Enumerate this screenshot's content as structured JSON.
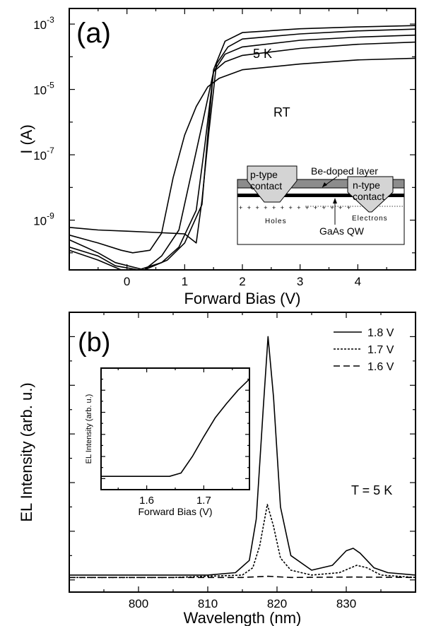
{
  "chart_data": [
    {
      "type": "line",
      "panel_label": "(a)",
      "xlabel": "Forward Bias (V)",
      "ylabel": "I (A)",
      "log_y": true,
      "xlim": [
        -1.0,
        5.0
      ],
      "ylim": [
        3e-11,
        0.003
      ],
      "x_ticks": [
        0,
        1,
        2,
        3,
        4
      ],
      "x_tick_labels": [
        "0",
        "1",
        "2",
        "3",
        "4"
      ],
      "y_ticks": [
        1e-09,
        1e-07,
        1e-05,
        0.001
      ],
      "y_tick_labels": [
        {
          "base": "10",
          "exp": "-9"
        },
        {
          "base": "10",
          "exp": "-7"
        },
        {
          "base": "10",
          "exp": "-5"
        },
        {
          "base": "10",
          "exp": "-3"
        }
      ],
      "annotations": [
        "5 K",
        "RT"
      ],
      "series": [
        {
          "values": [
            [
              -1.0,
              3.5e-10
            ],
            [
              -0.5,
              2e-10
            ],
            [
              -0.1,
              1.2e-10
            ],
            [
              0.1,
              1e-10
            ],
            [
              0.4,
              1.2e-10
            ],
            [
              0.6,
              4e-10
            ],
            [
              0.8,
              2e-08
            ],
            [
              1.0,
              4e-07
            ],
            [
              1.2,
              3e-06
            ],
            [
              1.4,
              1.2e-05
            ],
            [
              1.6,
              2.2e-05
            ],
            [
              2.0,
              4e-05
            ],
            [
              3.0,
              6e-05
            ],
            [
              4.0,
              8e-05
            ],
            [
              5.0,
              9e-05
            ]
          ]
        },
        {
          "values": [
            [
              -1.0,
              2.5e-10
            ],
            [
              -0.5,
              1e-10
            ],
            [
              -0.2,
              5e-11
            ],
            [
              0.3,
              3e-11
            ],
            [
              0.6,
              8e-11
            ],
            [
              0.9,
              5e-10
            ],
            [
              1.1,
              2e-08
            ],
            [
              1.3,
              8e-07
            ],
            [
              1.5,
              3.5e-05
            ],
            [
              1.7,
              7e-05
            ],
            [
              2.0,
              0.00011
            ],
            [
              3.0,
              0.00018
            ],
            [
              4.0,
              0.00024
            ],
            [
              5.0,
              0.00028
            ]
          ]
        },
        {
          "values": [
            [
              -1.0,
              1.5e-10
            ],
            [
              -0.5,
              8e-11
            ],
            [
              -0.2,
              4e-11
            ],
            [
              0.2,
              3e-11
            ],
            [
              0.6,
              5e-11
            ],
            [
              0.9,
              1.5e-10
            ],
            [
              1.2,
              2e-09
            ],
            [
              1.35,
              2e-07
            ],
            [
              1.5,
              3.5e-05
            ],
            [
              1.7,
              0.00012
            ],
            [
              2.0,
              0.0002
            ],
            [
              3.0,
              0.00032
            ],
            [
              4.0,
              0.0004
            ],
            [
              5.0,
              0.00046
            ]
          ]
        },
        {
          "values": [
            [
              -1.0,
              6e-10
            ],
            [
              -0.5,
              5e-10
            ],
            [
              0.0,
              4.6e-10
            ],
            [
              0.5,
              4.2e-10
            ],
            [
              1.0,
              3.8e-10
            ],
            [
              1.2,
              2e-10
            ],
            [
              1.3,
              4e-09
            ],
            [
              1.42,
              5e-07
            ],
            [
              1.55,
              6e-05
            ],
            [
              1.75,
              0.0002
            ],
            [
              2.0,
              0.00035
            ],
            [
              3.0,
              0.0005
            ],
            [
              4.0,
              0.00062
            ],
            [
              5.0,
              0.0007
            ]
          ]
        },
        {
          "values": [
            [
              -1.0,
              1.2e-10
            ],
            [
              -0.5,
              6e-11
            ],
            [
              -0.1,
              3e-11
            ],
            [
              0.3,
              3e-11
            ],
            [
              0.7,
              6e-11
            ],
            [
              1.0,
              2e-10
            ],
            [
              1.3,
              3e-09
            ],
            [
              1.4,
              4e-07
            ],
            [
              1.5,
              4e-05
            ],
            [
              1.7,
              0.0003
            ],
            [
              2.0,
              0.00055
            ],
            [
              3.0,
              0.00072
            ],
            [
              4.0,
              0.00082
            ],
            [
              5.0,
              0.0009
            ]
          ]
        }
      ],
      "inset_diagram": {
        "labels": [
          "p-type\ncontact",
          "Be-doped layer",
          "n-type\ncontact",
          "Holes",
          "Electrons",
          "GaAs QW"
        ]
      }
    },
    {
      "type": "line",
      "panel_label": "(b)",
      "xlabel": "Wavelength (nm)",
      "ylabel": "EL Intensity (arb. u.)",
      "xlim": [
        790,
        840
      ],
      "ylim": [
        -0.05,
        1.1
      ],
      "x_ticks": [
        800,
        810,
        820,
        830
      ],
      "x_tick_labels": [
        "800",
        "810",
        "820",
        "830"
      ],
      "annotations": [
        "T = 5 K"
      ],
      "legend": "top-right",
      "series": [
        {
          "name": "1.8 V",
          "dash": "solid",
          "values": [
            [
              790,
              0.02
            ],
            [
              800,
              0.02
            ],
            [
              810,
              0.02
            ],
            [
              814,
              0.03
            ],
            [
              816,
              0.08
            ],
            [
              817,
              0.25
            ],
            [
              818,
              0.7
            ],
            [
              818.7,
              1.0
            ],
            [
              819.5,
              0.75
            ],
            [
              820.5,
              0.3
            ],
            [
              822,
              0.1
            ],
            [
              825,
              0.04
            ],
            [
              828,
              0.06
            ],
            [
              830,
              0.12
            ],
            [
              831,
              0.13
            ],
            [
              832,
              0.11
            ],
            [
              834,
              0.05
            ],
            [
              836,
              0.03
            ],
            [
              840,
              0.02
            ]
          ]
        },
        {
          "name": "1.7 V",
          "dash": "dotted",
          "values": [
            [
              790,
              0.01
            ],
            [
              805,
              0.01
            ],
            [
              815,
              0.02
            ],
            [
              816.5,
              0.05
            ],
            [
              817.5,
              0.14
            ],
            [
              818.6,
              0.31
            ],
            [
              819.5,
              0.22
            ],
            [
              820.5,
              0.09
            ],
            [
              822,
              0.04
            ],
            [
              825,
              0.02
            ],
            [
              829,
              0.03
            ],
            [
              831.5,
              0.06
            ],
            [
              833,
              0.05
            ],
            [
              835,
              0.02
            ],
            [
              840,
              0.01
            ]
          ]
        },
        {
          "name": "1.6 V",
          "dash": "dashed",
          "values": [
            [
              790,
              0.01
            ],
            [
              815,
              0.01
            ],
            [
              818.7,
              0.015
            ],
            [
              822,
              0.01
            ],
            [
              831,
              0.012
            ],
            [
              840,
              0.01
            ]
          ]
        }
      ]
    },
    {
      "type": "line",
      "inset_of": "(b)",
      "xlabel": "Forward Bias (V)",
      "ylabel": "EL Intensity (arb. u.)",
      "xlim": [
        1.52,
        1.78
      ],
      "ylim": [
        -0.1,
        1.0
      ],
      "x_ticks": [
        1.6,
        1.7
      ],
      "x_tick_labels": [
        "1.6",
        "1.7"
      ],
      "series": [
        {
          "values": [
            [
              1.52,
              0.02
            ],
            [
              1.55,
              0.02
            ],
            [
              1.6,
              0.02
            ],
            [
              1.64,
              0.02
            ],
            [
              1.66,
              0.05
            ],
            [
              1.68,
              0.2
            ],
            [
              1.7,
              0.38
            ],
            [
              1.72,
              0.55
            ],
            [
              1.74,
              0.68
            ],
            [
              1.76,
              0.8
            ],
            [
              1.78,
              0.9
            ]
          ]
        }
      ]
    }
  ]
}
